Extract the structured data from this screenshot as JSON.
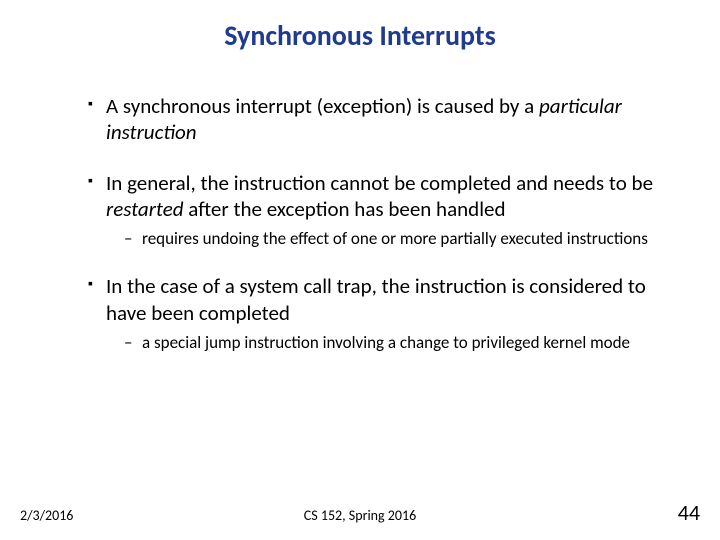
{
  "title": {
    "text": "Synchronous Interrupts",
    "color": "#1f3b8f",
    "fontsize": 28
  },
  "bullets": [
    {
      "runs": [
        {
          "t": "A synchronous interrupt (exception) is caused by a ",
          "italic": false
        },
        {
          "t": "particular instruction",
          "italic": true
        }
      ],
      "sub": []
    },
    {
      "runs": [
        {
          "t": "In general, the instruction cannot be completed and needs to be ",
          "italic": false
        },
        {
          "t": "restarted",
          "italic": true
        },
        {
          "t": " after the exception has been handled",
          "italic": false
        }
      ],
      "sub": [
        {
          "runs": [
            {
              "t": "requires undoing the effect of one or more partially executed instructions",
              "italic": false
            }
          ]
        }
      ]
    },
    {
      "runs": [
        {
          "t": "In the case of a system call trap, the instruction is considered to have been completed",
          "italic": false
        }
      ],
      "sub": [
        {
          "runs": [
            {
              "t": "a special jump instruction involving a change to privileged kernel mode",
              "italic": false
            }
          ]
        }
      ]
    }
  ],
  "footer": {
    "date": "2/3/2016",
    "center": "CS 152, Spring 2016",
    "page": "44"
  },
  "typography": {
    "body_fontsize": 21,
    "sub_fontsize": 17,
    "footer_fontsize": 14,
    "page_fontsize": 22
  },
  "colors": {
    "background": "#ffffff",
    "text": "#000000"
  }
}
